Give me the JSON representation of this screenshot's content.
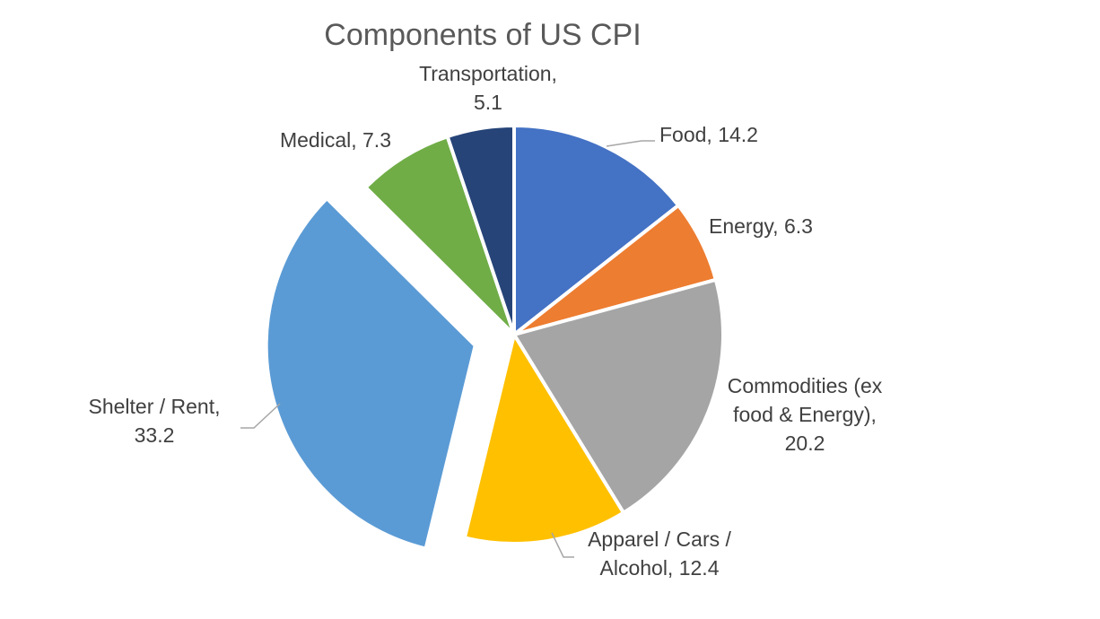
{
  "chart_data": {
    "type": "pie",
    "title": "Components of US CPI",
    "slices": [
      {
        "name": "Food",
        "value": 14.2,
        "color": "#4472C4",
        "label_lines": [
          "Food, 14.2"
        ],
        "exploded": false
      },
      {
        "name": "Energy",
        "value": 6.3,
        "color": "#ED7D31",
        "label_lines": [
          "Energy, 6.3"
        ],
        "exploded": false
      },
      {
        "name": "Commodities (ex food & Energy)",
        "value": 20.2,
        "color": "#A5A5A5",
        "label_lines": [
          "Commodities (ex",
          "food & Energy),",
          "20.2"
        ],
        "exploded": false
      },
      {
        "name": "Apparel / Cars / Alcohol",
        "value": 12.4,
        "color": "#FFC000",
        "label_lines": [
          "Apparel / Cars /",
          "Alcohol, 12.4"
        ],
        "exploded": false
      },
      {
        "name": "Shelter / Rent",
        "value": 33.2,
        "color": "#5B9BD5",
        "label_lines": [
          "Shelter / Rent,",
          "33.2"
        ],
        "exploded": true
      },
      {
        "name": "Medical",
        "value": 7.3,
        "color": "#70AD47",
        "label_lines": [
          "Medical, 7.3"
        ],
        "exploded": false
      },
      {
        "name": "Transportation",
        "value": 5.1,
        "color": "#264478",
        "label_lines": [
          "Transportation,",
          "5.1"
        ],
        "exploded": false
      }
    ],
    "start_angle": "12 o'clock",
    "direction": "clockwise",
    "legend": "none"
  }
}
